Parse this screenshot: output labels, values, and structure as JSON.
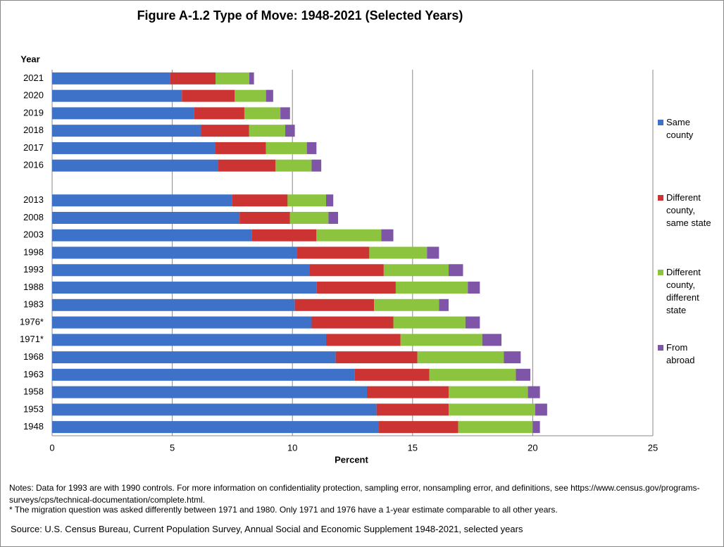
{
  "chart_data": {
    "type": "stacked-bar-horizontal",
    "title": "Figure A-1.2 Type of Move: 1948-2021 (Selected Years)",
    "y_label": "Year",
    "x_label": "Percent",
    "categories": [
      "2021",
      "2020",
      "2019",
      "2018",
      "2017",
      "2016",
      null,
      "2013",
      "2008",
      "2003",
      "1998",
      "1993",
      "1988",
      "1983",
      "1976*",
      "1971*",
      "1968",
      "1963",
      "1958",
      "1953",
      "1948"
    ],
    "series": [
      {
        "name": "Same county",
        "color": "#3d72c8",
        "values": [
          4.9,
          5.4,
          5.9,
          6.2,
          6.8,
          6.9,
          null,
          7.5,
          7.8,
          8.3,
          10.2,
          10.7,
          11.0,
          10.1,
          10.8,
          11.4,
          11.8,
          12.6,
          13.1,
          13.5,
          13.6
        ]
      },
      {
        "name": "Different county, same state",
        "color": "#cc3333",
        "values": [
          1.9,
          2.2,
          2.1,
          2.0,
          2.1,
          2.4,
          null,
          2.3,
          2.1,
          2.7,
          3.0,
          3.1,
          3.3,
          3.3,
          3.4,
          3.1,
          3.4,
          3.1,
          3.4,
          3.0,
          3.3
        ]
      },
      {
        "name": "Different county, different state",
        "color": "#8cc43f",
        "values": [
          1.4,
          1.3,
          1.5,
          1.5,
          1.7,
          1.5,
          null,
          1.6,
          1.6,
          2.7,
          2.4,
          2.7,
          3.0,
          2.7,
          3.0,
          3.4,
          3.6,
          3.6,
          3.3,
          3.6,
          3.1
        ]
      },
      {
        "name": "From abroad",
        "color": "#7f55a8",
        "values": [
          0.2,
          0.3,
          0.4,
          0.4,
          0.4,
          0.4,
          null,
          0.3,
          0.4,
          0.5,
          0.5,
          0.6,
          0.5,
          0.4,
          0.6,
          0.8,
          0.7,
          0.6,
          0.5,
          0.5,
          0.3
        ]
      }
    ],
    "xlim": [
      0,
      25
    ],
    "xticks": [
      0,
      5,
      10,
      15,
      20,
      25
    ],
    "grid": true,
    "legend": "right",
    "notes": [
      "Notes: Data for 1993 are with 1990 controls. For more information on confidentiality protection, sampling error, nonsampling error, and definitions, see https://www.census.gov/programs-surveys/cps/technical-documentation/complete.html.",
      "* The migration question was asked differently between 1971 and 1980. Only 1971 and 1976 have a 1-year estimate comparable to all other years."
    ],
    "source": "Source: U.S. Census Bureau, Current Population Survey, Annual Social and Economic Supplement 1948-2021, selected years"
  }
}
